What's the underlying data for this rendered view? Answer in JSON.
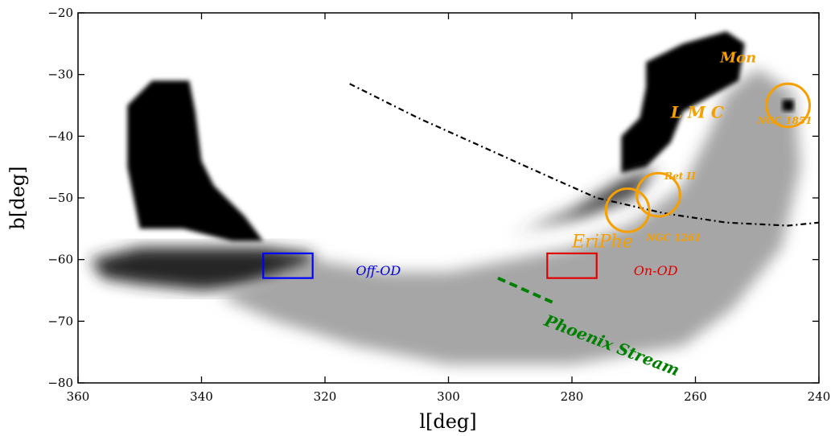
{
  "chart_data": {
    "type": "heatmap",
    "xlabel": "l[deg]",
    "ylabel": "b[deg]",
    "xlim": [
      360,
      240
    ],
    "ylim": [
      -80,
      -20
    ],
    "xticks": [
      {
        "value": 360,
        "label": "360"
      },
      {
        "value": 340,
        "label": "340"
      },
      {
        "value": 320,
        "label": "320"
      },
      {
        "value": 300,
        "label": "300"
      },
      {
        "value": 280,
        "label": "280"
      },
      {
        "value": 260,
        "label": "260"
      },
      {
        "value": 240,
        "label": "240"
      }
    ],
    "yticks": [
      {
        "value": -20,
        "label": "−20"
      },
      {
        "value": -30,
        "label": "−30"
      },
      {
        "value": -40,
        "label": "−40"
      },
      {
        "value": -50,
        "label": "−50"
      },
      {
        "value": -60,
        "label": "−60"
      },
      {
        "value": -70,
        "label": "−70"
      },
      {
        "value": -80,
        "label": "−80"
      }
    ],
    "density_regions": [
      {
        "name": "smc-region",
        "intensity": 1.0,
        "points": [
          [
            348,
            -31
          ],
          [
            342,
            -31
          ],
          [
            341,
            -36
          ],
          [
            340,
            -44
          ],
          [
            338,
            -48
          ],
          [
            333,
            -53
          ],
          [
            330,
            -57
          ],
          [
            335,
            -57
          ],
          [
            343,
            -55
          ],
          [
            350,
            -55
          ],
          [
            352,
            -45
          ],
          [
            352,
            -35
          ]
        ]
      },
      {
        "name": "bridge-tail",
        "intensity": 0.85,
        "points": [
          [
            358,
            -60
          ],
          [
            350,
            -58
          ],
          [
            340,
            -58
          ],
          [
            330,
            -58
          ],
          [
            322,
            -59
          ],
          [
            322,
            -62
          ],
          [
            328,
            -64
          ],
          [
            340,
            -65
          ],
          [
            350,
            -64
          ],
          [
            356,
            -63
          ]
        ]
      },
      {
        "name": "lmc-halo",
        "intensity": 0.35,
        "points": [
          [
            322,
            -60
          ],
          [
            310,
            -62
          ],
          [
            300,
            -62
          ],
          [
            290,
            -60
          ],
          [
            280,
            -58
          ],
          [
            270,
            -54
          ],
          [
            262,
            -48
          ],
          [
            258,
            -40
          ],
          [
            255,
            -33
          ],
          [
            250,
            -29
          ],
          [
            244,
            -33
          ],
          [
            243,
            -45
          ],
          [
            246,
            -58
          ],
          [
            254,
            -68
          ],
          [
            262,
            -74
          ],
          [
            280,
            -77
          ],
          [
            300,
            -77
          ],
          [
            315,
            -74
          ],
          [
            328,
            -70
          ],
          [
            337,
            -66
          ],
          [
            330,
            -63
          ]
        ]
      },
      {
        "name": "lmc-body",
        "intensity": 1.0,
        "points": [
          [
            268,
            -28
          ],
          [
            262,
            -25
          ],
          [
            255,
            -23
          ],
          [
            252,
            -25
          ],
          [
            253,
            -31
          ],
          [
            262,
            -36
          ],
          [
            264,
            -41
          ],
          [
            268,
            -45
          ],
          [
            272,
            -46
          ],
          [
            272,
            -40
          ],
          [
            269,
            -37
          ],
          [
            268,
            -32
          ]
        ]
      },
      {
        "name": "lmc-outskirts",
        "intensity": 0.75,
        "points": [
          [
            287,
            -55
          ],
          [
            278,
            -53
          ],
          [
            270,
            -50
          ],
          [
            266,
            -45
          ],
          [
            272,
            -47
          ],
          [
            280,
            -52
          ],
          [
            290,
            -56
          ]
        ]
      }
    ],
    "annotations": [
      {
        "text": "L M C",
        "l": 264,
        "b": -37,
        "color": "#f5a000",
        "style": "bold-italic",
        "size": 20
      },
      {
        "text": "Mon",
        "l": 256,
        "b": -28,
        "color": "#f5a000",
        "style": "bold-italic",
        "size": 18
      },
      {
        "text": "NGC 1851",
        "l": 250,
        "b": -38,
        "color": "#f5a000",
        "style": "bold-italic",
        "size": 12
      },
      {
        "text": "Ret II",
        "l": 265,
        "b": -47,
        "color": "#f5a000",
        "style": "bold-italic",
        "size": 12
      },
      {
        "text": "NGC 1261",
        "l": 268,
        "b": -57,
        "color": "#f5a000",
        "style": "bold-italic",
        "size": 12
      },
      {
        "text": "EriPhe",
        "l": 280,
        "b": -58,
        "color": "#f5a000",
        "style": "italic",
        "size": 22
      },
      {
        "text": "On-OD",
        "l": 270,
        "b": -62.5,
        "color": "#e00000",
        "style": "italic",
        "size": 16
      },
      {
        "text": "Off-OD",
        "l": 315,
        "b": -62.5,
        "color": "#0000e0",
        "style": "italic",
        "size": 16
      },
      {
        "text": "Phoenix Stream",
        "l": 281,
        "b": -72,
        "color": "#008000",
        "style": "bold-italic",
        "size": 20
      }
    ],
    "circles": [
      {
        "name": "NGC 1851",
        "l": 245,
        "b": -35,
        "r": 3.5
      },
      {
        "name": "Ret II",
        "l": 266,
        "b": -49.5,
        "r": 3.5
      },
      {
        "name": "NGC 1261",
        "l": 271,
        "b": -52,
        "r": 3.5
      }
    ],
    "boxes": [
      {
        "name": "Off-OD",
        "l1": 330,
        "l2": 322,
        "b1": -59,
        "b2": -63,
        "color": "#0000ff"
      },
      {
        "name": "On-OD",
        "l1": 284,
        "l2": 276,
        "b1": -59,
        "b2": -63,
        "color": "#e00000"
      }
    ],
    "lines": [
      {
        "name": "lmc-arc",
        "style": "dash-dot",
        "color": "#000000",
        "points": [
          [
            316,
            -31.5
          ],
          [
            305,
            -37
          ],
          [
            295,
            -41.5
          ],
          [
            285,
            -46
          ],
          [
            276,
            -50
          ],
          [
            265,
            -52.5
          ],
          [
            255,
            -54
          ],
          [
            245,
            -54.5
          ],
          [
            240,
            -54
          ]
        ]
      },
      {
        "name": "phoenix-track",
        "style": "dashed",
        "color": "#008000",
        "points": [
          [
            292,
            -63
          ],
          [
            283,
            -67
          ]
        ]
      }
    ],
    "colors": {
      "density": "#000000",
      "orange": "#f5a000",
      "red": "#e00000",
      "blue": "#0000ff",
      "green": "#008000"
    }
  }
}
